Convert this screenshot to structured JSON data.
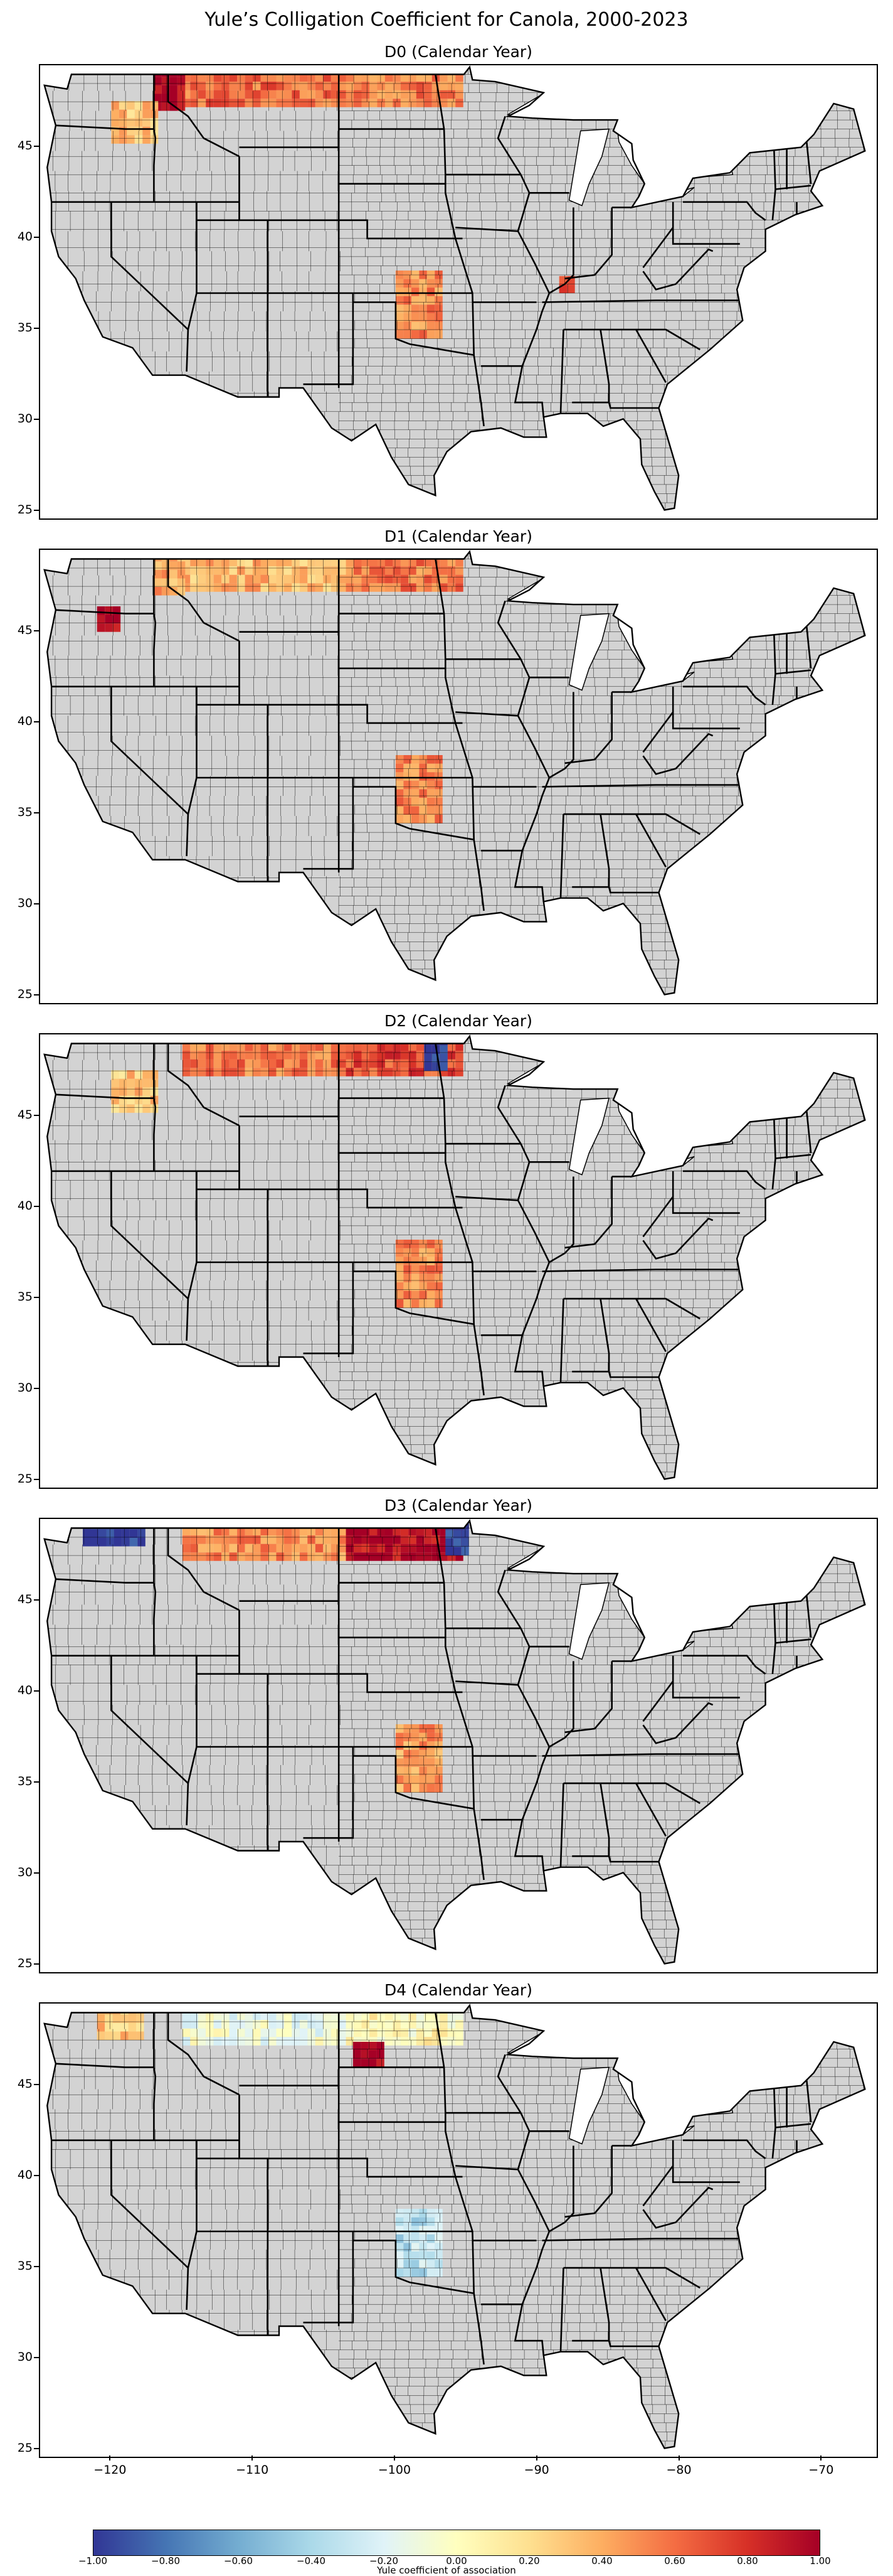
{
  "title": "Yule’s Colligation Coefficient for Canola, 2000-2023",
  "panels": [
    {
      "label": "D0 (Calendar Year)"
    },
    {
      "label": "D1 (Calendar Year)"
    },
    {
      "label": "D2 (Calendar Year)"
    },
    {
      "label": "D3 (Calendar Year)"
    },
    {
      "label": "D4 (Calendar Year)"
    }
  ],
  "y_axis": {
    "ticks": [
      "45",
      "40",
      "35",
      "30",
      "25"
    ],
    "range": [
      24.5,
      49.5
    ]
  },
  "x_axis": {
    "ticks": [
      "−120",
      "−110",
      "−100",
      "−90",
      "−80",
      "−70"
    ],
    "range": [
      -125,
      -66
    ]
  },
  "colorbar": {
    "label": "Yule coefficient of association",
    "ticks": [
      "−1.00",
      "−0.80",
      "−0.60",
      "−0.40",
      "−0.20",
      "0.00",
      "0.20",
      "0.40",
      "0.60",
      "0.80",
      "1.00"
    ],
    "range": [
      -1,
      1
    ],
    "colormap": "RdYlBu_r",
    "colors": [
      "#313695",
      "#4575b4",
      "#74add1",
      "#abd9e9",
      "#e0f3f8",
      "#ffffbf",
      "#fee090",
      "#fdae61",
      "#f46d43",
      "#d73027",
      "#a50026"
    ]
  },
  "map_colors": {
    "nodata": "#d3d3d3",
    "border": "#000000",
    "background": "#ffffff"
  },
  "chart_data": {
    "type": "heatmap",
    "title": "Yule’s Colligation Coefficient for Canola, 2000-2023",
    "subplots": [
      {
        "name": "D0 (Calendar Year)",
        "regions": [
          {
            "area": "northern Montana",
            "lon": [
              -115,
              -104
            ],
            "lat": [
              47.2,
              49
            ],
            "value": 0.6
          },
          {
            "area": "northern North Dakota",
            "lon": [
              -103.5,
              -95.5
            ],
            "lat": [
              47.2,
              49
            ],
            "value": 0.55
          },
          {
            "area": "southern Kansas / Oklahoma",
            "lon": [
              -100,
              -97
            ],
            "lat": [
              34.5,
              38.2
            ],
            "value": 0.5
          },
          {
            "area": "Idaho panhandle",
            "lon": [
              -117,
              -115
            ],
            "lat": [
              47,
              49
            ],
            "value": 1.0
          },
          {
            "area": "eastern Washington",
            "lon": [
              -120,
              -117
            ],
            "lat": [
              45.2,
              47.5
            ],
            "value": 0.3
          },
          {
            "area": "western Kentucky",
            "lon": [
              -88.5,
              -87.5
            ],
            "lat": [
              37,
              37.6
            ],
            "value": 0.8
          }
        ]
      },
      {
        "name": "D1 (Calendar Year)",
        "regions": [
          {
            "area": "northern Montana",
            "lon": [
              -115,
              -104
            ],
            "lat": [
              47.2,
              49
            ],
            "value": 0.35
          },
          {
            "area": "northern North Dakota",
            "lon": [
              -103.5,
              -95.5
            ],
            "lat": [
              47.2,
              49
            ],
            "value": 0.55
          },
          {
            "area": "southern Kansas / Oklahoma",
            "lon": [
              -100,
              -97
            ],
            "lat": [
              34.5,
              38.2
            ],
            "value": 0.5
          },
          {
            "area": "Idaho panhandle",
            "lon": [
              -117,
              -115
            ],
            "lat": [
              47,
              49
            ],
            "value": 0.4
          },
          {
            "area": "eastern Oregon",
            "lon": [
              -121,
              -119.5
            ],
            "lat": [
              45,
              46
            ],
            "value": 1.0
          }
        ]
      },
      {
        "name": "D2 (Calendar Year)",
        "regions": [
          {
            "area": "northern Montana",
            "lon": [
              -115,
              -104
            ],
            "lat": [
              47.2,
              49
            ],
            "value": 0.55
          },
          {
            "area": "northern North Dakota",
            "lon": [
              -103.5,
              -95.5
            ],
            "lat": [
              47.2,
              49
            ],
            "value": 0.7
          },
          {
            "area": "southern Kansas / Oklahoma",
            "lon": [
              -100,
              -97
            ],
            "lat": [
              34.5,
              38.2
            ],
            "value": 0.5
          },
          {
            "area": "eastern Washington",
            "lon": [
              -120,
              -117
            ],
            "lat": [
              45.2,
              47.5
            ],
            "value": 0.3
          },
          {
            "area": "northeast North Dakota",
            "lon": [
              -98,
              -96.5
            ],
            "lat": [
              47.5,
              49
            ],
            "value": -1.0
          }
        ]
      },
      {
        "name": "D3 (Calendar Year)",
        "regions": [
          {
            "area": "northern Montana",
            "lon": [
              -115,
              -104
            ],
            "lat": [
              47.2,
              49
            ],
            "value": 0.5
          },
          {
            "area": "northern North Dakota",
            "lon": [
              -103.5,
              -95.5
            ],
            "lat": [
              47.2,
              49
            ],
            "value": 0.95
          },
          {
            "area": "southern Kansas / Oklahoma",
            "lon": [
              -100,
              -97
            ],
            "lat": [
              34.5,
              38.2
            ],
            "value": 0.45
          },
          {
            "area": "northern Washington",
            "lon": [
              -122,
              -118
            ],
            "lat": [
              48,
              49
            ],
            "value": -1.0
          },
          {
            "area": "northwest Minnesota",
            "lon": [
              -96.5,
              -95
            ],
            "lat": [
              47.5,
              49
            ],
            "value": -1.0
          }
        ]
      },
      {
        "name": "D4 (Calendar Year)",
        "regions": [
          {
            "area": "northern Montana",
            "lon": [
              -115,
              -104
            ],
            "lat": [
              47.2,
              49
            ],
            "value": -0.1
          },
          {
            "area": "northern North Dakota",
            "lon": [
              -103.5,
              -95.5
            ],
            "lat": [
              47.2,
              49
            ],
            "value": 0.05
          },
          {
            "area": "southern Kansas / Oklahoma",
            "lon": [
              -100,
              -97
            ],
            "lat": [
              34.5,
              38.2
            ],
            "value": -0.35
          },
          {
            "area": "northern Washington",
            "lon": [
              -121,
              -118
            ],
            "lat": [
              47.5,
              49
            ],
            "value": 0.3
          },
          {
            "area": "central North Dakota",
            "lon": [
              -103,
              -101
            ],
            "lat": [
              46,
              47
            ],
            "value": 1.0
          }
        ]
      }
    ],
    "xlabel": "",
    "ylabel": "",
    "xlim": [
      -125,
      -66
    ],
    "ylim": [
      24.5,
      49.5
    ],
    "colorbar_label": "Yule coefficient of association",
    "vmin": -1.0,
    "vmax": 1.0
  }
}
